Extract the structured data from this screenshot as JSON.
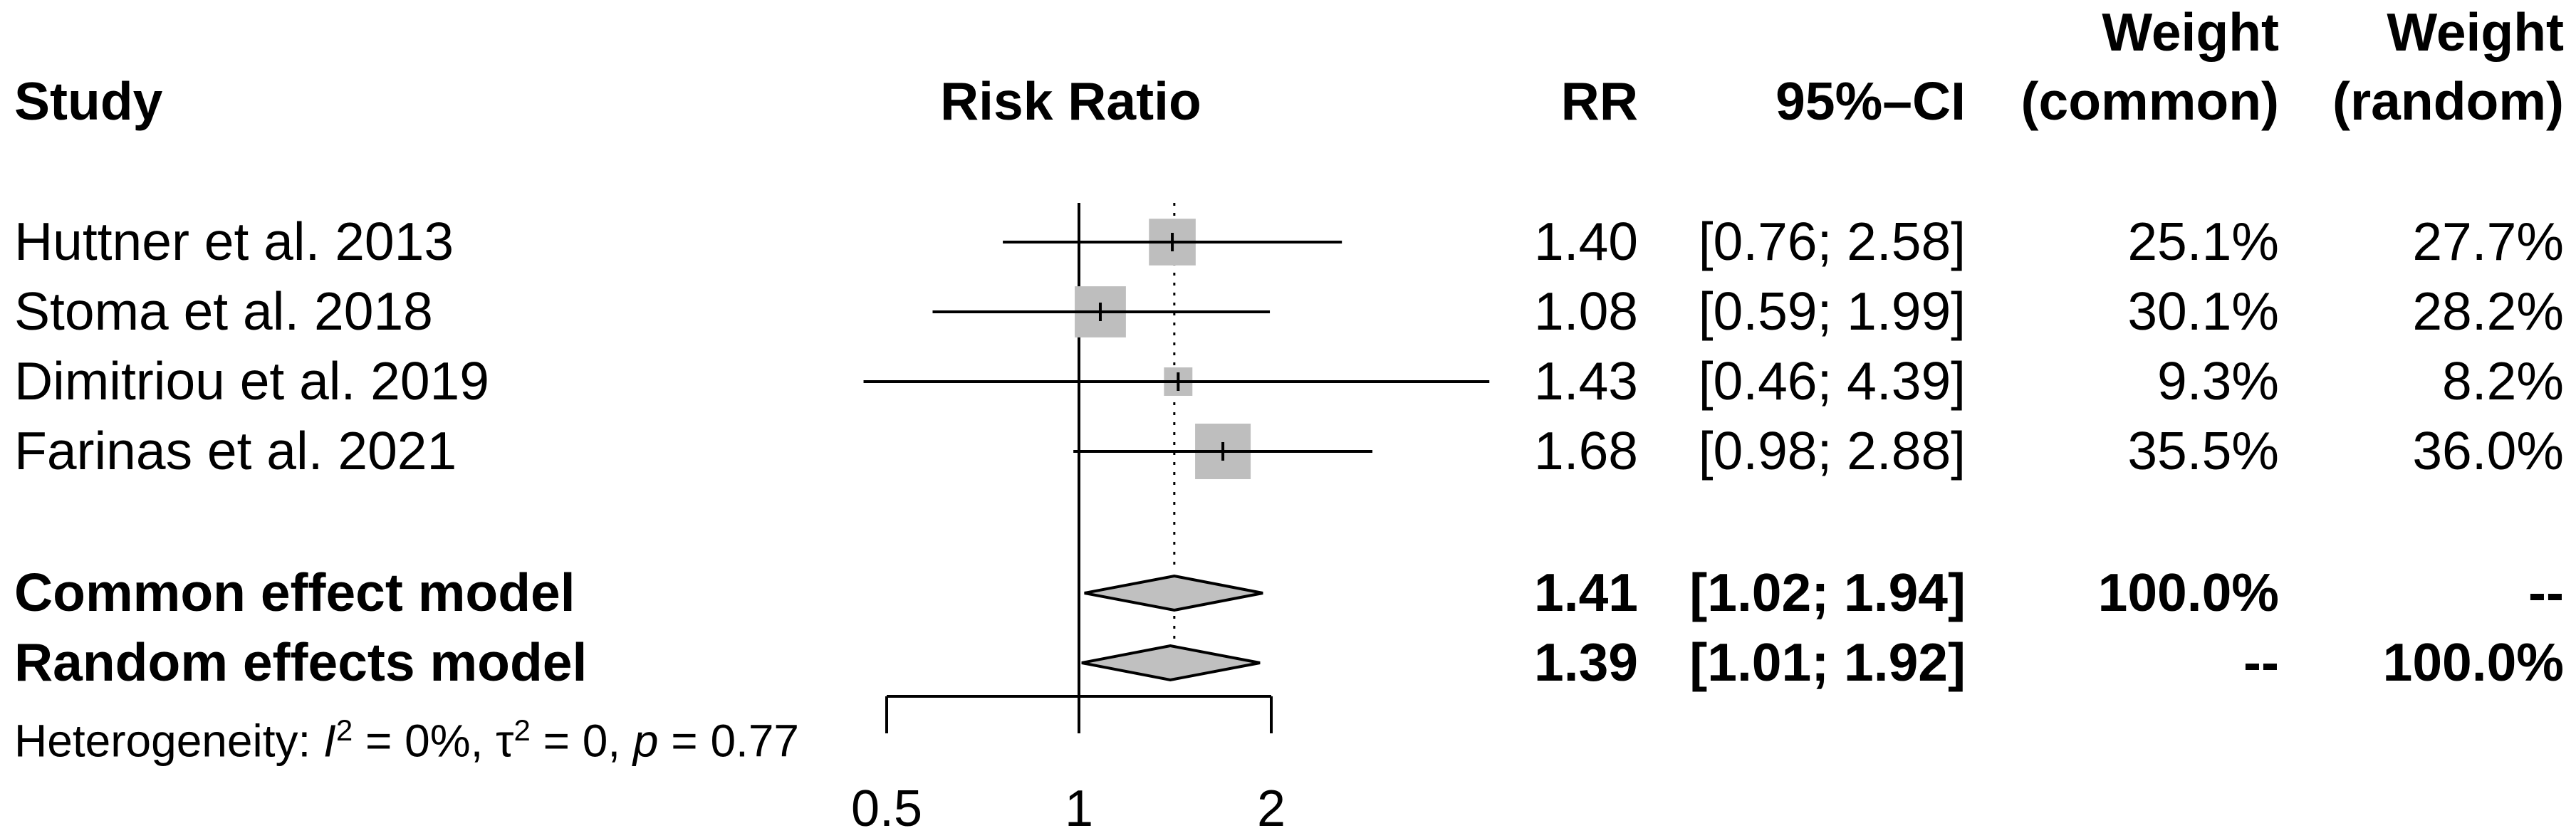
{
  "colors": {
    "box": "#bebebe",
    "diamond": "#c0c0c0",
    "line": "#000000"
  },
  "headers": {
    "study": "Study",
    "risk_ratio": "Risk Ratio",
    "rr": "RR",
    "ci": "95%–CI",
    "weight": "Weight",
    "weight_common_sub": "(common)",
    "weight_random_sub": "(random)"
  },
  "studies": [
    {
      "name": "Huttner et al. 2013",
      "rr": "1.40",
      "ci": "[0.76; 2.58]",
      "w_common": "25.1%",
      "w_random": "27.7%"
    },
    {
      "name": "Stoma et al. 2018",
      "rr": "1.08",
      "ci": "[0.59; 1.99]",
      "w_common": "30.1%",
      "w_random": "28.2%"
    },
    {
      "name": "Dimitriou et al. 2019",
      "rr": "1.43",
      "ci": "[0.46; 4.39]",
      "w_common": "9.3%",
      "w_random": "8.2%"
    },
    {
      "name": "Farinas et al. 2021",
      "rr": "1.68",
      "ci": "[0.98; 2.88]",
      "w_common": "35.5%",
      "w_random": "36.0%"
    }
  ],
  "models": [
    {
      "name": "Common effect model",
      "rr": "1.41",
      "ci": "[1.02; 1.94]",
      "w_common": "100.0%",
      "w_random": "--"
    },
    {
      "name": "Random effects model",
      "rr": "1.39",
      "ci": "[1.01; 1.92]",
      "w_common": "--",
      "w_random": "100.0%"
    }
  ],
  "heterogeneity": {
    "prefix": "Heterogeneity: ",
    "i2_symbol": "I",
    "i2_value": " = 0%, ",
    "tau_symbol": "τ",
    "tau_value": " = 0, ",
    "p_symbol": "p",
    "p_value": " = 0.77"
  },
  "chart_data": {
    "type": "forest",
    "title": "",
    "xlabel": "Risk Ratio",
    "x_scale": "log",
    "xlim": [
      0.5,
      2
    ],
    "x_ticks": [
      "0.5",
      "1",
      "2"
    ],
    "null_line": 1,
    "series": [
      {
        "name": "Huttner et al. 2013",
        "est": 1.4,
        "lo": 0.76,
        "hi": 2.58,
        "weight": 25.1
      },
      {
        "name": "Stoma et al. 2018",
        "est": 1.08,
        "lo": 0.59,
        "hi": 1.99,
        "weight": 30.1
      },
      {
        "name": "Dimitriou et al. 2019",
        "est": 1.43,
        "lo": 0.46,
        "hi": 4.39,
        "weight": 9.3
      },
      {
        "name": "Farinas et al. 2021",
        "est": 1.68,
        "lo": 0.98,
        "hi": 2.88,
        "weight": 35.5
      }
    ],
    "summary": [
      {
        "name": "Common effect model",
        "est": 1.41,
        "lo": 1.02,
        "hi": 1.94
      },
      {
        "name": "Random effects model",
        "est": 1.39,
        "lo": 1.01,
        "hi": 1.92
      }
    ]
  }
}
